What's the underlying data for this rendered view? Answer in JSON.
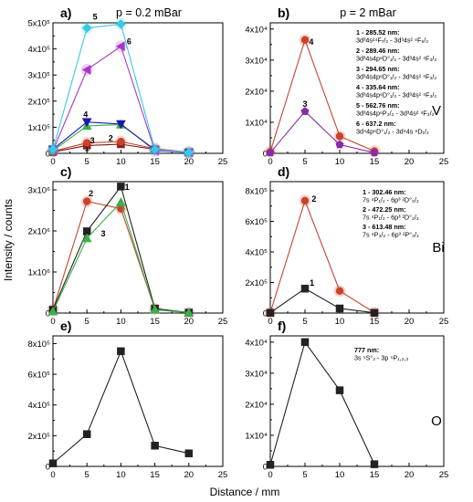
{
  "figure": {
    "row_labels": [
      "V",
      "Bi",
      "O"
    ],
    "y_axis_label": "Intensity / counts",
    "x_axis_label": "Distance / mm"
  },
  "chart_data": [
    {
      "panel": "a)",
      "type": "line",
      "title": "p = 0.2 mBar",
      "xlim": [
        0,
        25
      ],
      "ylim": [
        0,
        500000
      ],
      "xticks": [
        "0",
        "5",
        "10",
        "15",
        "20",
        "25"
      ],
      "yticks": [
        {
          "v": 0,
          "label": "0"
        },
        {
          "v": 100000,
          "label": "1x10⁵"
        },
        {
          "v": 200000,
          "label": "2x10⁵"
        },
        {
          "v": 300000,
          "label": "3x10⁵"
        },
        {
          "v": 400000,
          "label": "4x10⁵"
        },
        {
          "v": 500000,
          "label": "5x10⁵"
        }
      ],
      "series": [
        {
          "name": "1",
          "color": "#7a1a1a",
          "marker": "square",
          "label_at": [
            5,
            8000
          ],
          "x": [
            0,
            5,
            10,
            15,
            20
          ],
          "y": [
            5000,
            30000,
            35000,
            15000,
            3000
          ]
        },
        {
          "name": "2",
          "color": "#c8432b",
          "marker": "circle",
          "label_at": [
            8.5,
            48000
          ],
          "x": [
            0,
            5,
            10,
            15,
            20
          ],
          "y": [
            8000,
            40000,
            45000,
            18000,
            4000
          ]
        },
        {
          "name": "3",
          "color": "#3cb04a",
          "marker": "triangle",
          "label_at": [
            5.8,
            38000
          ],
          "x": [
            0,
            5,
            10,
            15,
            20
          ],
          "y": [
            10000,
            105000,
            110000,
            15000,
            3000
          ]
        },
        {
          "name": "4",
          "color": "#1a1aa8",
          "marker": "triangle-down",
          "label_at": [
            4.8,
            138000
          ],
          "x": [
            0,
            5,
            10,
            15,
            20
          ],
          "y": [
            15000,
            120000,
            112000,
            12000,
            3000
          ]
        },
        {
          "name": "6",
          "color": "#a838c8",
          "marker": "triangle-left",
          "label_at": [
            11.2,
            418000
          ],
          "x": [
            0,
            5,
            10,
            15,
            20
          ],
          "y": [
            10000,
            320000,
            410000,
            10000,
            3000
          ]
        },
        {
          "name": "5",
          "color": "#38c8e8",
          "marker": "diamond",
          "label_at": [
            6.2,
            512000
          ],
          "x": [
            0,
            5,
            10,
            15,
            20
          ],
          "y": [
            15000,
            480000,
            495000,
            15000,
            3000
          ]
        }
      ]
    },
    {
      "panel": "b)",
      "type": "line",
      "title": "p = 2 mBar",
      "xlim": [
        0,
        25
      ],
      "ylim": [
        0,
        42000
      ],
      "xticks": [
        "0",
        "5",
        "10",
        "15",
        "20",
        "25"
      ],
      "yticks": [
        {
          "v": 0,
          "label": "0"
        },
        {
          "v": 10000,
          "label": "1x10⁴"
        },
        {
          "v": 20000,
          "label": "2x10⁴"
        },
        {
          "v": 30000,
          "label": "3x10⁴"
        },
        {
          "v": 40000,
          "label": "4x10⁴"
        }
      ],
      "series": [
        {
          "name": "4",
          "color": "#c8432b",
          "marker": "circle",
          "label_at": [
            5.9,
            35000
          ],
          "x": [
            0,
            5,
            10,
            15
          ],
          "y": [
            500,
            36500,
            5500,
            700
          ]
        },
        {
          "name": "3",
          "color": "#8a2aa8",
          "marker": "pentagon",
          "label_at": [
            5,
            15000
          ],
          "x": [
            0,
            5,
            10,
            15
          ],
          "y": [
            200,
            13500,
            2800,
            200
          ]
        }
      ],
      "legend": {
        "position": "top-right",
        "entries": [
          {
            "head": "1 - 285.52 nm:",
            "line": "3d³4s²⁴F₇/₂ - 3d³4s² ⁴F₅/₂"
          },
          {
            "head": "2 - 289.46 nm:",
            "line": "3d³4s4p⁶D°₁/₂ - 3d³4s² ⁴F₃/₂"
          },
          {
            "head": "3 - 294.65 nm:",
            "line": "3d³4s4p⁶D°₁/₂ - 3d³4s² ⁴F₃/₂"
          },
          {
            "head": "4 - 335.64 nm:",
            "line": "3d³4s4p⁶D°₁/₂ - 3d³4s² ⁴F₃/₂"
          },
          {
            "head": "5 - 562.76 nm:",
            "line": "3d³4s4p⁶P₃/₂ - 3d³4s² ⁴F₃/₂"
          },
          {
            "head": "6 - 637.2  nm:",
            "line": "3d⁴4p⁶D°₁/₂ - 3d⁴4s ⁶D₁/₂"
          }
        ]
      }
    },
    {
      "panel": "c)",
      "type": "line",
      "title": "",
      "xlim": [
        0,
        25
      ],
      "ylim": [
        0,
        3200000
      ],
      "xticks": [
        "0",
        "5",
        "10",
        "15",
        "20",
        "25"
      ],
      "yticks": [
        {
          "v": 0,
          "label": "0"
        },
        {
          "v": 1000000,
          "label": "1x10⁶"
        },
        {
          "v": 2000000,
          "label": "2x10⁶"
        },
        {
          "v": 3000000,
          "label": "3x10⁶"
        }
      ],
      "series": [
        {
          "name": "2",
          "color": "#c8432b",
          "marker": "circle",
          "label_at": [
            5.6,
            2850000
          ],
          "x": [
            0,
            5,
            10,
            15,
            20
          ],
          "y": [
            80000,
            2720000,
            2540000,
            100000,
            10000
          ]
        },
        {
          "name": "1",
          "color": "#222222",
          "marker": "square",
          "label_at": [
            10.9,
            3000000
          ],
          "x": [
            0,
            5,
            10,
            15,
            20
          ],
          "y": [
            80000,
            1990000,
            3080000,
            110000,
            10000
          ]
        },
        {
          "name": "3",
          "color": "#3cb04a",
          "marker": "triangle",
          "label_at": [
            7.4,
            1870000
          ],
          "x": [
            0,
            5,
            10,
            15,
            20
          ],
          "y": [
            40000,
            1820000,
            2700000,
            80000,
            10000
          ]
        }
      ]
    },
    {
      "panel": "d)",
      "type": "line",
      "title": "",
      "xlim": [
        0,
        25
      ],
      "ylim": [
        0,
        860000
      ],
      "xticks": [
        "0",
        "5",
        "10",
        "15",
        "20",
        "25"
      ],
      "yticks": [
        {
          "v": 0,
          "label": "0"
        },
        {
          "v": 200000,
          "label": "2x10⁵"
        },
        {
          "v": 400000,
          "label": "4x10⁵"
        },
        {
          "v": 600000,
          "label": "6x10⁵"
        },
        {
          "v": 800000,
          "label": "8x10⁵"
        }
      ],
      "series": [
        {
          "name": "2",
          "color": "#c8432b",
          "marker": "circle",
          "label_at": [
            6.3,
            730000
          ],
          "x": [
            0,
            5,
            10,
            15
          ],
          "y": [
            3000,
            735000,
            145000,
            3000
          ]
        },
        {
          "name": "1",
          "color": "#222222",
          "marker": "square",
          "label_at": [
            6,
            180000
          ],
          "x": [
            0,
            5,
            10,
            15
          ],
          "y": [
            2000,
            160000,
            30000,
            2000
          ]
        }
      ],
      "legend": {
        "position": "top-right",
        "entries": [
          {
            "head": "1 - 302.46 nm:",
            "line": "7s ⁴P₁/₂ - 6p³ ²D°₃/₂"
          },
          {
            "head": "2 - 472.25 nm:",
            "line": "7s ⁴P₁/₂ - 6p³ ²D°₃/₂"
          },
          {
            "head": "3 - 613.48 nm:",
            "line": "7s ⁴P₃/₂ - 6p³ ²P°₃/₂"
          }
        ]
      }
    },
    {
      "panel": "e)",
      "type": "line",
      "title": "",
      "xlim": [
        0,
        25
      ],
      "ylim": [
        0,
        850000
      ],
      "xticks": [
        "0",
        "5",
        "10",
        "15",
        "20",
        "25"
      ],
      "yticks": [
        {
          "v": 0,
          "label": "0"
        },
        {
          "v": 200000,
          "label": "2x10⁵"
        },
        {
          "v": 400000,
          "label": "4x10⁵"
        },
        {
          "v": 600000,
          "label": "6x10⁵"
        },
        {
          "v": 800000,
          "label": "8x10⁵"
        }
      ],
      "series": [
        {
          "name": "",
          "color": "#222222",
          "marker": "square",
          "x": [
            0,
            5,
            10,
            15,
            20
          ],
          "y": [
            20000,
            210000,
            750000,
            135000,
            85000
          ]
        }
      ]
    },
    {
      "panel": "f)",
      "type": "line",
      "title": "",
      "xlim": [
        0,
        25
      ],
      "ylim": [
        0,
        42000
      ],
      "xticks": [
        "0",
        "5",
        "10",
        "15",
        "20",
        "25"
      ],
      "yticks": [
        {
          "v": 0,
          "label": "0"
        },
        {
          "v": 10000,
          "label": "1x10⁴"
        },
        {
          "v": 20000,
          "label": "2x10⁴"
        },
        {
          "v": 30000,
          "label": "3x10⁴"
        },
        {
          "v": 40000,
          "label": "4x10⁴"
        }
      ],
      "series": [
        {
          "name": "",
          "color": "#222222",
          "marker": "square",
          "x": [
            0,
            5,
            10,
            15
          ],
          "y": [
            500,
            40000,
            24500,
            700
          ]
        }
      ],
      "legend": {
        "position": "top-right",
        "entries": [
          {
            "head": "777 nm:",
            "line": "3s ⁵S°₂ - 3p ⁵P₁,₂,₃"
          }
        ]
      }
    }
  ]
}
